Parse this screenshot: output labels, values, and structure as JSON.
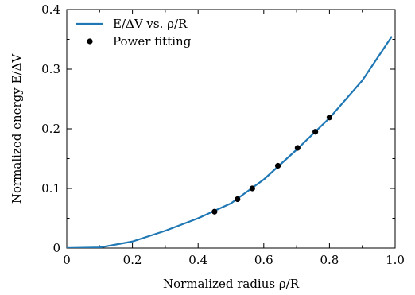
{
  "chart_data": {
    "type": "line",
    "xlabel": "Normalized radius ρ/R",
    "ylabel": "Normalized energy E/ΔV",
    "xlim": [
      0,
      1.0
    ],
    "ylim": [
      0,
      0.4
    ],
    "x_ticks": [
      0,
      0.2,
      0.4,
      0.6,
      0.8,
      1.0
    ],
    "x_tick_labels": [
      "0",
      "0.2",
      "0.4",
      "0.6",
      "0.8",
      "1.0"
    ],
    "y_ticks": [
      0,
      0.1,
      0.2,
      0.3,
      0.4
    ],
    "y_tick_labels": [
      "0",
      "0.1",
      "0.2",
      "0.3",
      "0.4"
    ],
    "legend_position": "top-left",
    "series": [
      {
        "name": "E/ΔV vs. ρ/R",
        "type": "line",
        "color": "#1f77b4",
        "x": [
          0.0,
          0.1,
          0.2,
          0.3,
          0.4,
          0.5,
          0.6,
          0.7,
          0.8,
          0.9,
          0.99
        ],
        "y": [
          0.0,
          0.001,
          0.011,
          0.029,
          0.05,
          0.075,
          0.115,
          0.165,
          0.218,
          0.281,
          0.355
        ]
      },
      {
        "name": "Power fitting",
        "type": "scatter",
        "color": "#000000",
        "x": [
          0.45,
          0.52,
          0.565,
          0.643,
          0.703,
          0.757,
          0.8
        ],
        "y": [
          0.061,
          0.082,
          0.1,
          0.138,
          0.168,
          0.195,
          0.219
        ]
      }
    ]
  }
}
